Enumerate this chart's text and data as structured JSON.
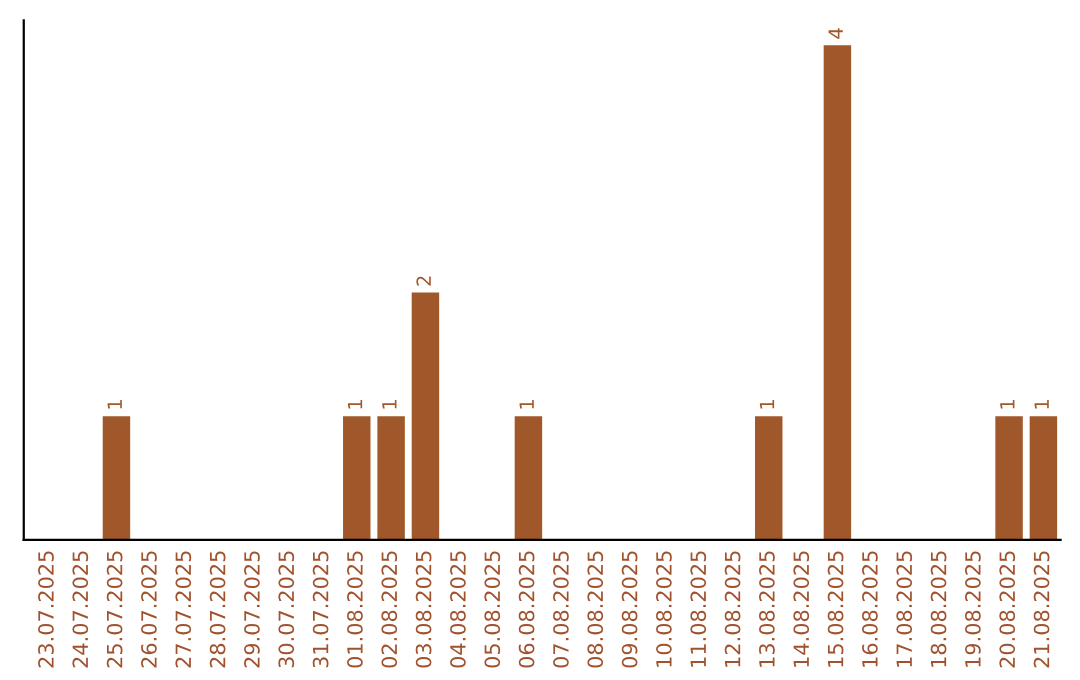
{
  "chart_data": {
    "type": "bar",
    "categories": [
      "23.07.2025",
      "24.07.2025",
      "25.07.2025",
      "26.07.2025",
      "27.07.2025",
      "28.07.2025",
      "29.07.2025",
      "30.07.2025",
      "31.07.2025",
      "01.08.2025",
      "02.08.2025",
      "03.08.2025",
      "04.08.2025",
      "05.08.2025",
      "06.08.2025",
      "07.08.2025",
      "08.08.2025",
      "09.08.2025",
      "10.08.2025",
      "11.08.2025",
      "12.08.2025",
      "13.08.2025",
      "14.08.2025",
      "15.08.2025",
      "16.08.2025",
      "17.08.2025",
      "18.08.2025",
      "19.08.2025",
      "20.08.2025",
      "21.08.2025"
    ],
    "values": [
      0,
      0,
      1,
      0,
      0,
      0,
      0,
      0,
      0,
      1,
      1,
      2,
      0,
      0,
      1,
      0,
      0,
      0,
      0,
      0,
      0,
      1,
      0,
      4,
      0,
      0,
      0,
      0,
      1,
      1
    ],
    "value_labels": [
      null,
      null,
      "1",
      null,
      null,
      null,
      null,
      null,
      null,
      "1",
      "1",
      "2",
      null,
      null,
      "1",
      null,
      null,
      null,
      null,
      null,
      null,
      "1",
      null,
      "4",
      null,
      null,
      null,
      null,
      "1",
      "1"
    ],
    "color": "#a0582a",
    "grid": false,
    "legend": false
  }
}
